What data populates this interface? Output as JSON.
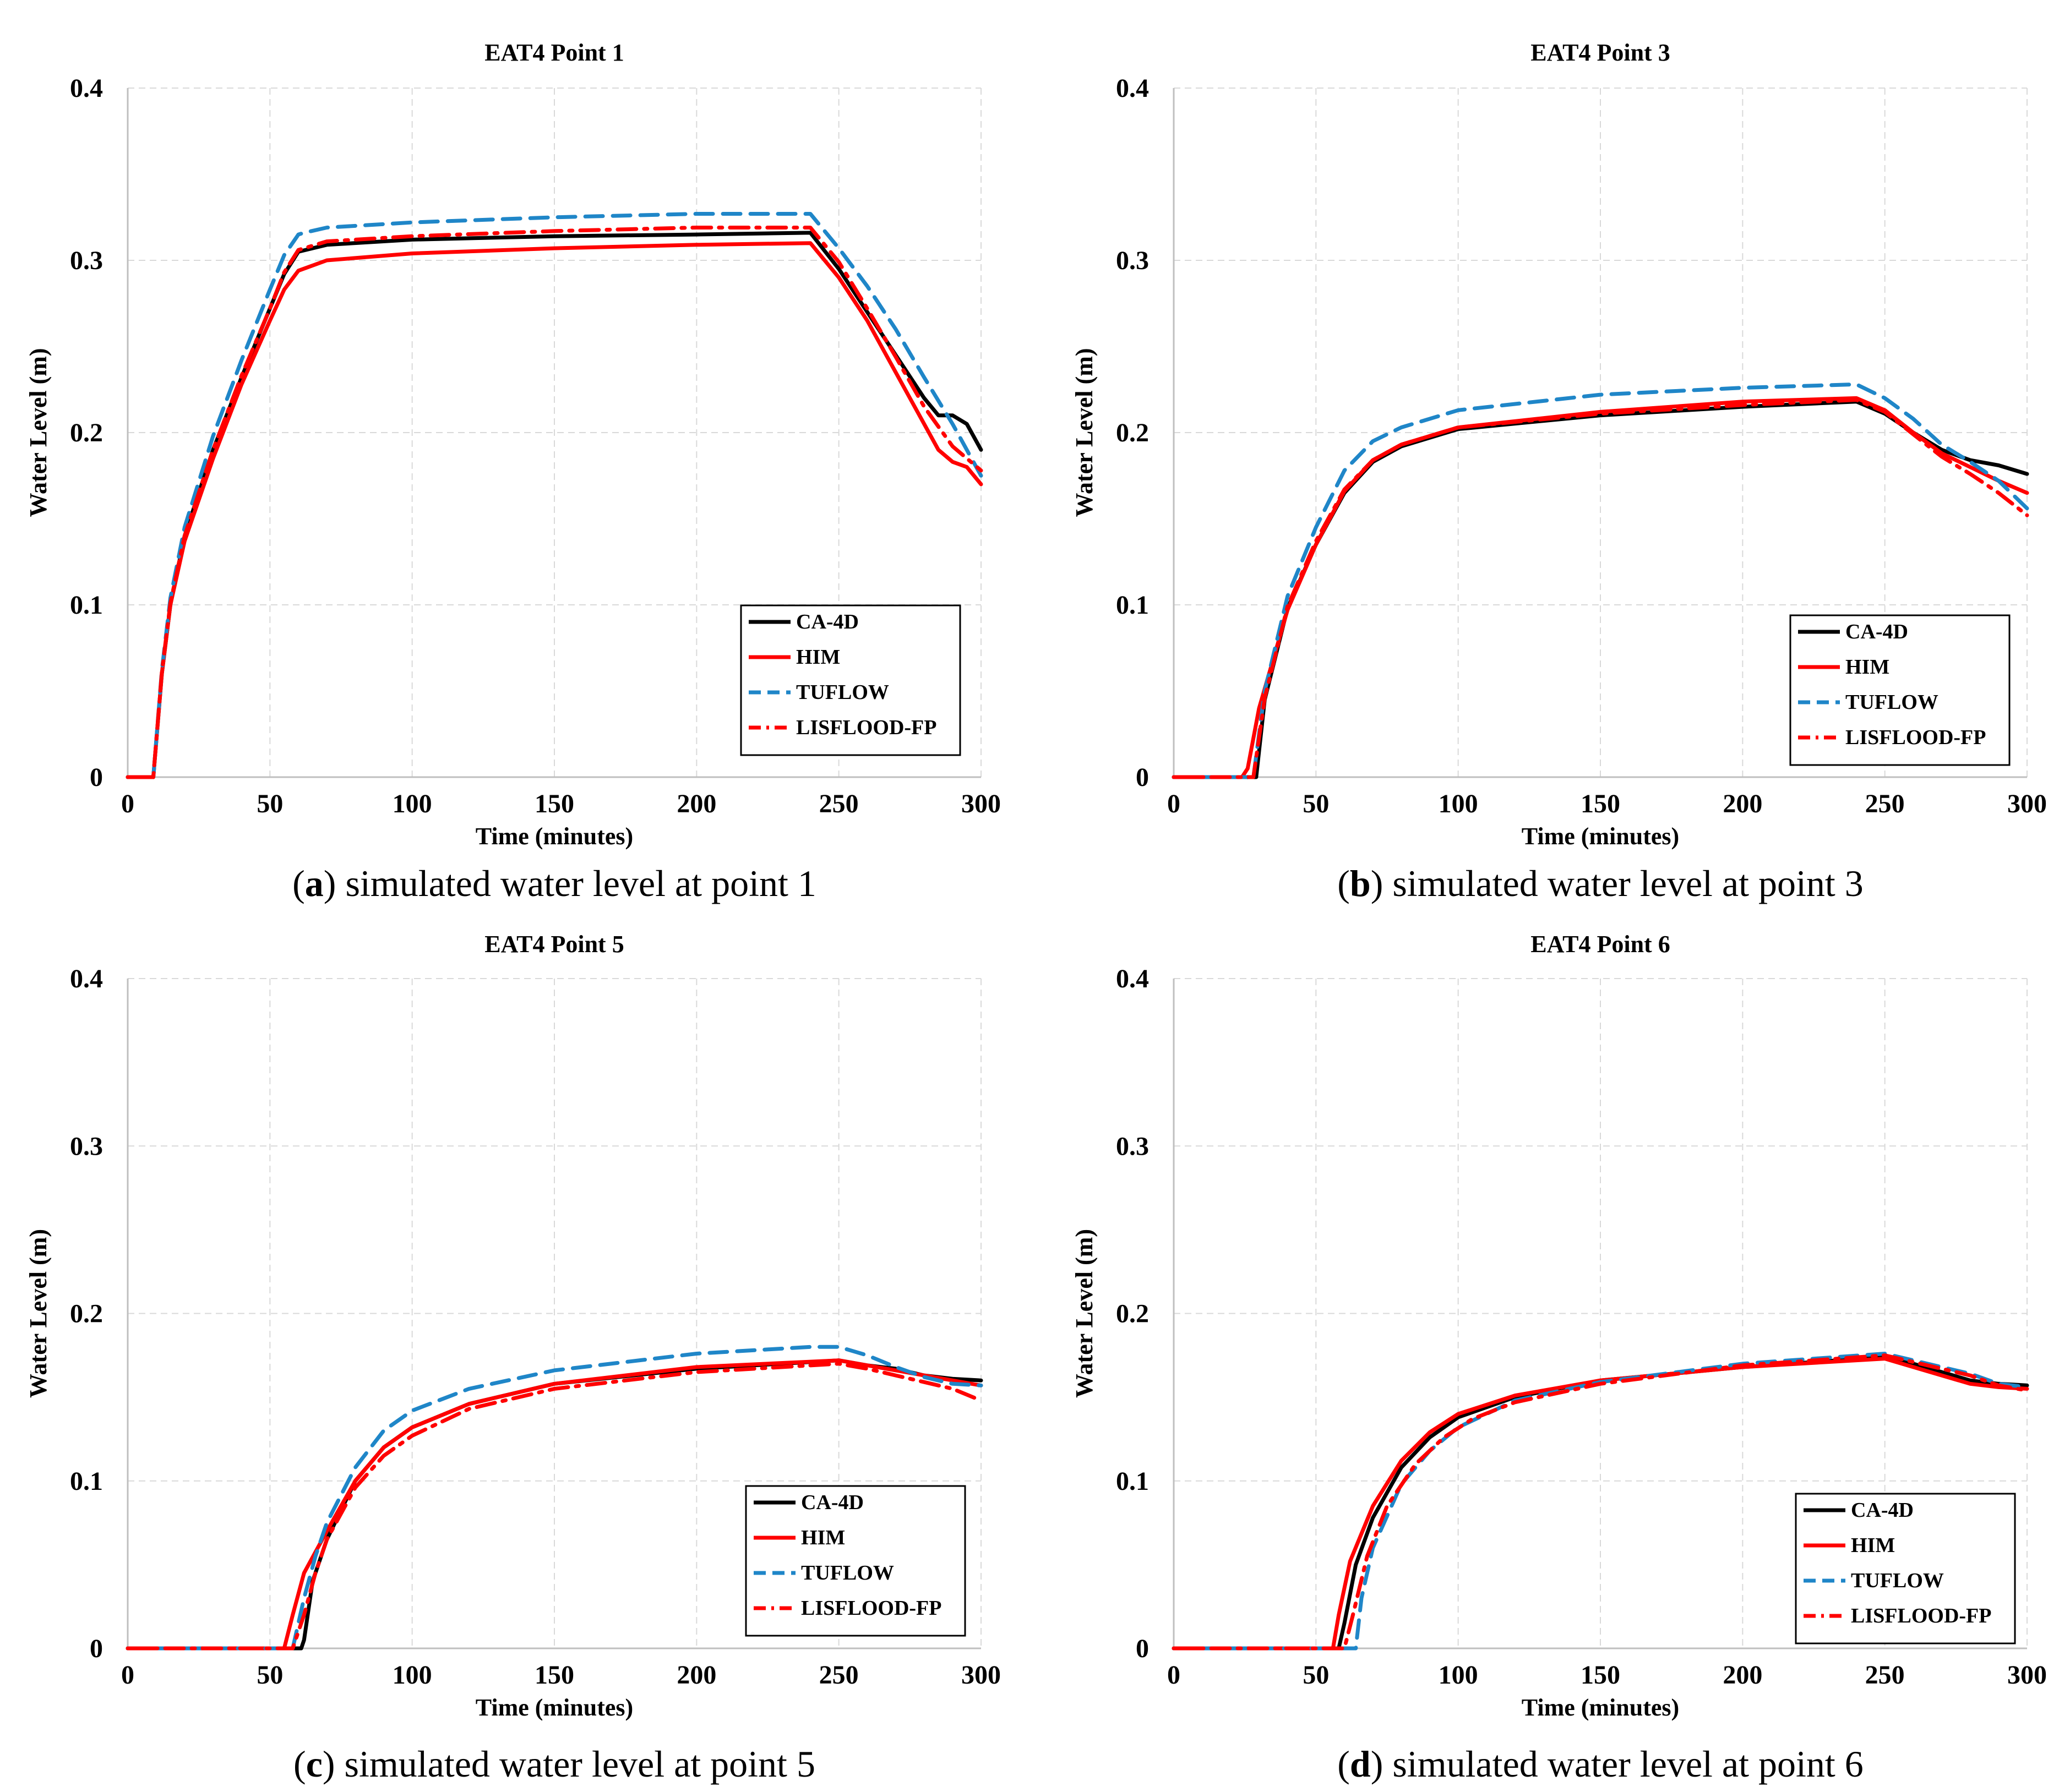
{
  "chart_data": [
    {
      "type": "line",
      "title": "EAT4 Point 1",
      "xlabel": "Time (minutes)",
      "ylabel": "Water Level (m)",
      "xlim": [
        0,
        300
      ],
      "ylim": [
        0,
        0.4
      ],
      "xticks": [
        "0",
        "50",
        "100",
        "150",
        "200",
        "250",
        "300"
      ],
      "yticks": [
        "0",
        "0.1",
        "0.2",
        "0.3",
        "0.4"
      ],
      "grid": true,
      "legend_position": "bottom-right",
      "caption": {
        "letter": "a",
        "text": "simulated water level at point 1"
      },
      "series": [
        {
          "name": "CA-4D",
          "color": "#000000",
          "dash": "solid",
          "x": [
            0,
            8,
            9,
            12,
            15,
            20,
            30,
            40,
            50,
            55,
            60,
            70,
            100,
            150,
            200,
            240,
            250,
            260,
            270,
            280,
            285,
            290,
            295,
            300
          ],
          "y": [
            0,
            0,
            0,
            0.06,
            0.1,
            0.14,
            0.19,
            0.232,
            0.272,
            0.292,
            0.305,
            0.309,
            0.312,
            0.314,
            0.315,
            0.316,
            0.295,
            0.27,
            0.245,
            0.22,
            0.21,
            0.21,
            0.205,
            0.19
          ]
        },
        {
          "name": "HIM",
          "color": "#ff0000",
          "dash": "solid",
          "x": [
            0,
            8,
            9,
            12,
            15,
            20,
            30,
            40,
            50,
            55,
            60,
            70,
            100,
            150,
            200,
            240,
            250,
            260,
            270,
            280,
            285,
            290,
            295,
            300
          ],
          "y": [
            0,
            0,
            0,
            0.06,
            0.1,
            0.137,
            0.185,
            0.228,
            0.265,
            0.283,
            0.294,
            0.3,
            0.304,
            0.307,
            0.309,
            0.31,
            0.29,
            0.265,
            0.235,
            0.205,
            0.19,
            0.183,
            0.18,
            0.17
          ]
        },
        {
          "name": "TUFLOW",
          "color": "#1f86c8",
          "dash": "dash",
          "x": [
            0,
            8,
            9,
            12,
            15,
            20,
            30,
            40,
            50,
            55,
            60,
            62,
            70,
            100,
            150,
            200,
            240,
            250,
            260,
            270,
            280,
            290,
            300
          ],
          "y": [
            0,
            0,
            0,
            0.062,
            0.104,
            0.145,
            0.198,
            0.242,
            0.283,
            0.303,
            0.315,
            0.316,
            0.319,
            0.322,
            0.325,
            0.327,
            0.327,
            0.307,
            0.285,
            0.26,
            0.232,
            0.205,
            0.175
          ]
        },
        {
          "name": "LISFLOOD-FP",
          "color": "#ff0000",
          "dash": "dashdot",
          "x": [
            0,
            8,
            9,
            12,
            15,
            20,
            30,
            40,
            50,
            55,
            60,
            70,
            100,
            150,
            200,
            240,
            250,
            260,
            270,
            280,
            290,
            300
          ],
          "y": [
            0,
            0,
            0,
            0.061,
            0.101,
            0.14,
            0.19,
            0.233,
            0.272,
            0.293,
            0.306,
            0.311,
            0.314,
            0.317,
            0.319,
            0.319,
            0.299,
            0.272,
            0.244,
            0.215,
            0.192,
            0.178
          ]
        }
      ]
    },
    {
      "type": "line",
      "title": "EAT4 Point 3",
      "xlabel": "Time (minutes)",
      "ylabel": "Water Level (m)",
      "xlim": [
        0,
        300
      ],
      "ylim": [
        0,
        0.4
      ],
      "xticks": [
        "0",
        "50",
        "100",
        "150",
        "200",
        "250",
        "300"
      ],
      "yticks": [
        "0",
        "0.1",
        "0.2",
        "0.3",
        "0.4"
      ],
      "grid": true,
      "legend_position": "bottom-right",
      "caption": {
        "letter": "b",
        "text": "simulated water level at point 3"
      },
      "series": [
        {
          "name": "CA-4D",
          "color": "#000000",
          "dash": "solid",
          "x": [
            0,
            25,
            29,
            32,
            40,
            50,
            60,
            70,
            80,
            100,
            150,
            200,
            240,
            250,
            260,
            270,
            280,
            290,
            300
          ],
          "y": [
            0,
            0,
            0,
            0.045,
            0.098,
            0.135,
            0.165,
            0.183,
            0.192,
            0.202,
            0.21,
            0.215,
            0.218,
            0.211,
            0.2,
            0.19,
            0.184,
            0.181,
            0.176
          ]
        },
        {
          "name": "HIM",
          "color": "#ff0000",
          "dash": "solid",
          "x": [
            0,
            24,
            26,
            30,
            40,
            50,
            60,
            70,
            80,
            100,
            150,
            200,
            240,
            250,
            260,
            270,
            280,
            290,
            300
          ],
          "y": [
            0,
            0,
            0.005,
            0.04,
            0.097,
            0.135,
            0.166,
            0.184,
            0.193,
            0.203,
            0.212,
            0.218,
            0.22,
            0.213,
            0.2,
            0.188,
            0.18,
            0.172,
            0.165
          ]
        },
        {
          "name": "TUFLOW",
          "color": "#1f86c8",
          "dash": "dash",
          "x": [
            0,
            25,
            28,
            32,
            40,
            50,
            60,
            70,
            80,
            100,
            150,
            200,
            240,
            250,
            260,
            270,
            280,
            290,
            300
          ],
          "y": [
            0,
            0,
            0,
            0.05,
            0.105,
            0.145,
            0.178,
            0.195,
            0.203,
            0.213,
            0.222,
            0.226,
            0.228,
            0.22,
            0.208,
            0.193,
            0.183,
            0.172,
            0.156
          ]
        },
        {
          "name": "LISFLOOD-FP",
          "color": "#ff0000",
          "dash": "dashdot",
          "x": [
            0,
            25,
            28,
            32,
            40,
            50,
            60,
            70,
            80,
            100,
            150,
            200,
            240,
            250,
            260,
            270,
            280,
            290,
            300
          ],
          "y": [
            0,
            0,
            0,
            0.046,
            0.099,
            0.137,
            0.167,
            0.184,
            0.193,
            0.203,
            0.211,
            0.216,
            0.219,
            0.212,
            0.199,
            0.186,
            0.176,
            0.165,
            0.152
          ]
        }
      ]
    },
    {
      "type": "line",
      "title": "EAT4 Point 5",
      "xlabel": "Time (minutes)",
      "ylabel": "Water Level (m)",
      "xlim": [
        0,
        300
      ],
      "ylim": [
        0,
        0.4
      ],
      "xticks": [
        "0",
        "50",
        "100",
        "150",
        "200",
        "250",
        "300"
      ],
      "yticks": [
        "0",
        "0.1",
        "0.2",
        "0.3",
        "0.4"
      ],
      "grid": true,
      "legend_position": "bottom-right",
      "caption": {
        "letter": "c",
        "text": "simulated water level at point 5"
      },
      "series": [
        {
          "name": "CA-4D",
          "color": "#000000",
          "dash": "solid",
          "x": [
            0,
            61,
            62,
            65,
            70,
            80,
            90,
            100,
            120,
            150,
            200,
            250,
            260,
            270,
            280,
            290,
            300
          ],
          "y": [
            0,
            0,
            0.005,
            0.04,
            0.065,
            0.1,
            0.12,
            0.132,
            0.146,
            0.158,
            0.167,
            0.172,
            0.169,
            0.167,
            0.163,
            0.161,
            0.16
          ]
        },
        {
          "name": "HIM",
          "color": "#ff0000",
          "dash": "solid",
          "x": [
            0,
            55,
            58,
            62,
            70,
            80,
            90,
            100,
            120,
            150,
            200,
            250,
            260,
            270,
            280,
            290,
            300
          ],
          "y": [
            0,
            0,
            0.02,
            0.045,
            0.07,
            0.1,
            0.12,
            0.132,
            0.146,
            0.158,
            0.168,
            0.172,
            0.169,
            0.166,
            0.163,
            0.16,
            0.157
          ]
        },
        {
          "name": "TUFLOW",
          "color": "#1f86c8",
          "dash": "dash",
          "x": [
            0,
            58,
            62,
            66,
            70,
            80,
            90,
            100,
            120,
            150,
            200,
            240,
            250,
            260,
            270,
            280,
            290,
            300
          ],
          "y": [
            0,
            0,
            0.03,
            0.055,
            0.075,
            0.108,
            0.13,
            0.142,
            0.155,
            0.166,
            0.176,
            0.18,
            0.18,
            0.175,
            0.168,
            0.162,
            0.158,
            0.157
          ]
        },
        {
          "name": "LISFLOOD-FP",
          "color": "#ff0000",
          "dash": "dashdot",
          "x": [
            0,
            58,
            62,
            66,
            70,
            80,
            90,
            100,
            120,
            150,
            200,
            250,
            260,
            270,
            280,
            290,
            300
          ],
          "y": [
            0,
            0,
            0.02,
            0.045,
            0.065,
            0.096,
            0.115,
            0.127,
            0.143,
            0.155,
            0.165,
            0.17,
            0.167,
            0.163,
            0.159,
            0.155,
            0.148
          ]
        }
      ]
    },
    {
      "type": "line",
      "title": "EAT4 Point 6",
      "xlabel": "Time (minutes)",
      "ylabel": "Water Level (m)",
      "xlim": [
        0,
        300
      ],
      "ylim": [
        0,
        0.4
      ],
      "xticks": [
        "0",
        "50",
        "100",
        "150",
        "200",
        "250",
        "300"
      ],
      "yticks": [
        "0",
        "0.1",
        "0.2",
        "0.3",
        "0.4"
      ],
      "grid": true,
      "legend_position": "bottom-right",
      "caption": {
        "letter": "d",
        "text": "simulated water level at point 6"
      },
      "series": [
        {
          "name": "CA-4D",
          "color": "#000000",
          "dash": "solid",
          "x": [
            0,
            58,
            60,
            64,
            70,
            80,
            90,
            100,
            120,
            150,
            200,
            250,
            260,
            270,
            280,
            290,
            300
          ],
          "y": [
            0,
            0,
            0.015,
            0.05,
            0.078,
            0.108,
            0.126,
            0.138,
            0.15,
            0.16,
            0.168,
            0.174,
            0.17,
            0.165,
            0.16,
            0.158,
            0.157
          ]
        },
        {
          "name": "HIM",
          "color": "#ff0000",
          "dash": "solid",
          "x": [
            0,
            56,
            58,
            62,
            70,
            80,
            90,
            100,
            120,
            150,
            200,
            250,
            260,
            270,
            280,
            290,
            300
          ],
          "y": [
            0,
            0,
            0.02,
            0.052,
            0.085,
            0.112,
            0.129,
            0.14,
            0.151,
            0.16,
            0.168,
            0.173,
            0.168,
            0.163,
            0.158,
            0.156,
            0.155
          ]
        },
        {
          "name": "TUFLOW",
          "color": "#1f86c8",
          "dash": "dash",
          "x": [
            0,
            64,
            66,
            70,
            80,
            90,
            100,
            120,
            150,
            200,
            250,
            260,
            270,
            280,
            290,
            300
          ],
          "y": [
            0,
            0,
            0.03,
            0.06,
            0.098,
            0.118,
            0.132,
            0.148,
            0.159,
            0.17,
            0.176,
            0.172,
            0.168,
            0.164,
            0.158,
            0.156
          ]
        },
        {
          "name": "LISFLOOD-FP",
          "color": "#ff0000",
          "dash": "dashdot",
          "x": [
            0,
            60,
            63,
            68,
            75,
            85,
            95,
            105,
            120,
            150,
            200,
            250,
            260,
            270,
            280,
            290,
            300
          ],
          "y": [
            0,
            0,
            0.02,
            0.055,
            0.085,
            0.11,
            0.126,
            0.137,
            0.147,
            0.158,
            0.169,
            0.175,
            0.171,
            0.167,
            0.163,
            0.157,
            0.154
          ]
        }
      ]
    }
  ]
}
